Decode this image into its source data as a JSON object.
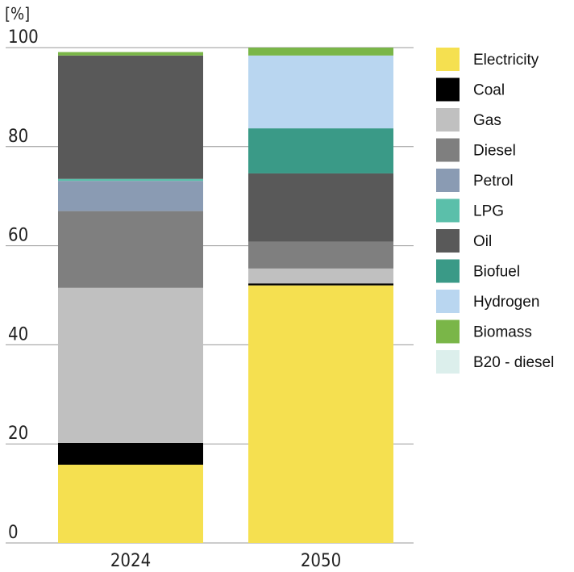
{
  "chart_data": {
    "type": "bar",
    "stacked": true,
    "unit_label": "[%]",
    "categories": [
      "2024",
      "2050"
    ],
    "ylim": [
      0,
      100
    ],
    "yticks": [
      0,
      20,
      40,
      60,
      80,
      100
    ],
    "grid": true,
    "legend_position": "right",
    "series": [
      {
        "name": "Electricity",
        "color": "#f5e050",
        "values": [
          15.8,
          52.0
        ]
      },
      {
        "name": "Coal",
        "color": "#000000",
        "values": [
          4.4,
          0.4
        ]
      },
      {
        "name": "Gas",
        "color": "#c0c0c0",
        "values": [
          31.3,
          3.0
        ]
      },
      {
        "name": "Diesel",
        "color": "#7f7f7f",
        "values": [
          15.5,
          5.4
        ]
      },
      {
        "name": "Petrol",
        "color": "#8a9bb3",
        "values": [
          6.1,
          0.0
        ]
      },
      {
        "name": "LPG",
        "color": "#5bbfaa",
        "values": [
          0.4,
          0.0
        ]
      },
      {
        "name": "Oil",
        "color": "#595959",
        "values": [
          24.9,
          13.8
        ]
      },
      {
        "name": "Biofuel",
        "color": "#3a9a87",
        "values": [
          0.0,
          9.1
        ]
      },
      {
        "name": "Hydrogen",
        "color": "#b9d6f0",
        "values": [
          0.0,
          14.7
        ]
      },
      {
        "name": "Biomass",
        "color": "#7ab648",
        "values": [
          0.7,
          1.6
        ]
      },
      {
        "name": "B20 - diesel",
        "color": "#dcefec",
        "values": [
          0.0,
          0.0
        ]
      }
    ]
  }
}
